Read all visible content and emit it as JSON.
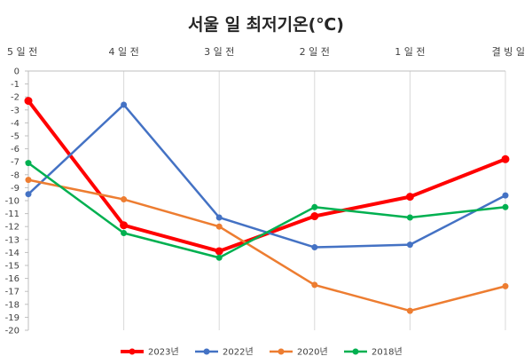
{
  "chart_data": {
    "type": "line",
    "title": "서울 일 최저기온(℃)",
    "categories": [
      "5 일 전",
      "4 일 전",
      "3 일 전",
      "2 일 전",
      "1 일 전",
      "결 빙 일"
    ],
    "ylim": [
      -20,
      0
    ],
    "yticks": [
      0,
      -1,
      -2,
      -3,
      -4,
      -5,
      -6,
      -7,
      -8,
      -9,
      -10,
      -11,
      -12,
      -13,
      -14,
      -15,
      -16,
      -17,
      -18,
      -19,
      -20
    ],
    "x_axis_position": "top",
    "grid": "vertical",
    "legend_position": "bottom",
    "series": [
      {
        "name": "2023년",
        "color": "#ff0000",
        "values": [
          -2.3,
          -11.9,
          -13.9,
          -11.2,
          -9.7,
          -6.8
        ]
      },
      {
        "name": "2022년",
        "color": "#4472c4",
        "values": [
          -9.5,
          -2.6,
          -11.3,
          -13.6,
          -13.4,
          -9.6
        ]
      },
      {
        "name": "2020년",
        "color": "#ed7d31",
        "values": [
          -8.4,
          -9.9,
          -12.0,
          -16.5,
          -18.5,
          -16.6
        ]
      },
      {
        "name": "2018년",
        "color": "#00b050",
        "values": [
          -7.1,
          -12.5,
          -14.4,
          -10.5,
          -11.3,
          -10.5
        ]
      }
    ]
  }
}
